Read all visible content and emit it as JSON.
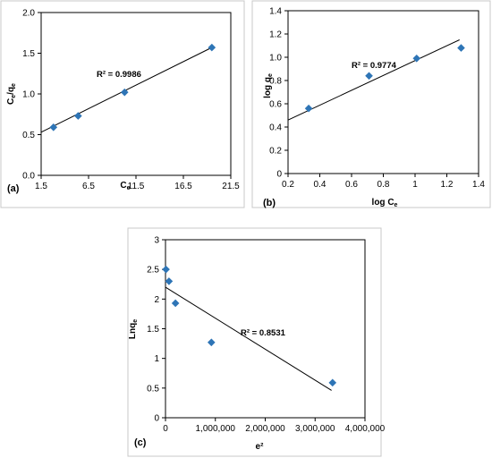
{
  "chart_data": [
    {
      "type": "scatter",
      "panel": "(a)",
      "xlabel": "C",
      "xlabel_sub": "e",
      "ylabel": "C",
      "ylabel_sub": "e",
      "ylabel_mid": "/q",
      "ylabel_sub2": "e",
      "xlim": [
        1.5,
        21.5
      ],
      "ylim": [
        0.0,
        2.0
      ],
      "xticks": [
        "1.5",
        "6.5",
        "11.5",
        "16.5",
        "21.5"
      ],
      "yticks": [
        "0.0",
        "0.5",
        "1.0",
        "1.5",
        "2.0"
      ],
      "x": [
        2.8,
        5.4,
        10.3,
        19.5
      ],
      "y": [
        0.59,
        0.73,
        1.02,
        1.57
      ],
      "trendline": {
        "x": [
          1.5,
          19.5
        ],
        "y": [
          0.53,
          1.57
        ]
      },
      "annotation": {
        "text": "R² = 0.9986"
      },
      "grid": false,
      "color": "#2e75b6"
    },
    {
      "type": "scatter",
      "panel": "(b)",
      "xlabel": "log C",
      "xlabel_sub": "e",
      "ylabel": "log q",
      "ylabel_sub": "e",
      "xlim": [
        0.2,
        1.4
      ],
      "ylim": [
        0.0,
        1.4
      ],
      "xticks": [
        "0.2",
        "0.4",
        "0.6",
        "0.8",
        "1",
        "1.2",
        "1.4"
      ],
      "yticks": [
        "0",
        "0.2",
        "0.4",
        "0.6",
        "0.8",
        "1.0",
        "1.2",
        "1.4"
      ],
      "x": [
        0.33,
        0.71,
        1.01,
        1.29
      ],
      "y": [
        0.56,
        0.84,
        0.99,
        1.08
      ],
      "trendline": {
        "x": [
          0.2,
          1.28
        ],
        "y": [
          0.46,
          1.15
        ]
      },
      "annotation": {
        "text": "R² = 0.9774"
      },
      "grid": false,
      "color": "#2e75b6"
    },
    {
      "type": "scatter",
      "panel": "(c)",
      "xlabel": "e²",
      "ylabel": "Lnq",
      "ylabel_sub": "e",
      "xlim": [
        0,
        4000000
      ],
      "ylim": [
        0,
        3
      ],
      "xticks": [
        "0",
        "1,000,000",
        "2,000,000",
        "3,000,000",
        "4,000,000"
      ],
      "yticks": [
        "0",
        "0.5",
        "1",
        "1.5",
        "2",
        "2.5",
        "3"
      ],
      "x": [
        10000,
        70000,
        200000,
        920000,
        3350000
      ],
      "y": [
        2.5,
        2.3,
        1.93,
        1.27,
        0.59
      ],
      "trendline": {
        "x": [
          0,
          3330000
        ],
        "y": [
          2.2,
          0.46
        ]
      },
      "annotation": {
        "text": "R² = 0.8531"
      },
      "grid": false,
      "color": "#2e75b6"
    }
  ]
}
